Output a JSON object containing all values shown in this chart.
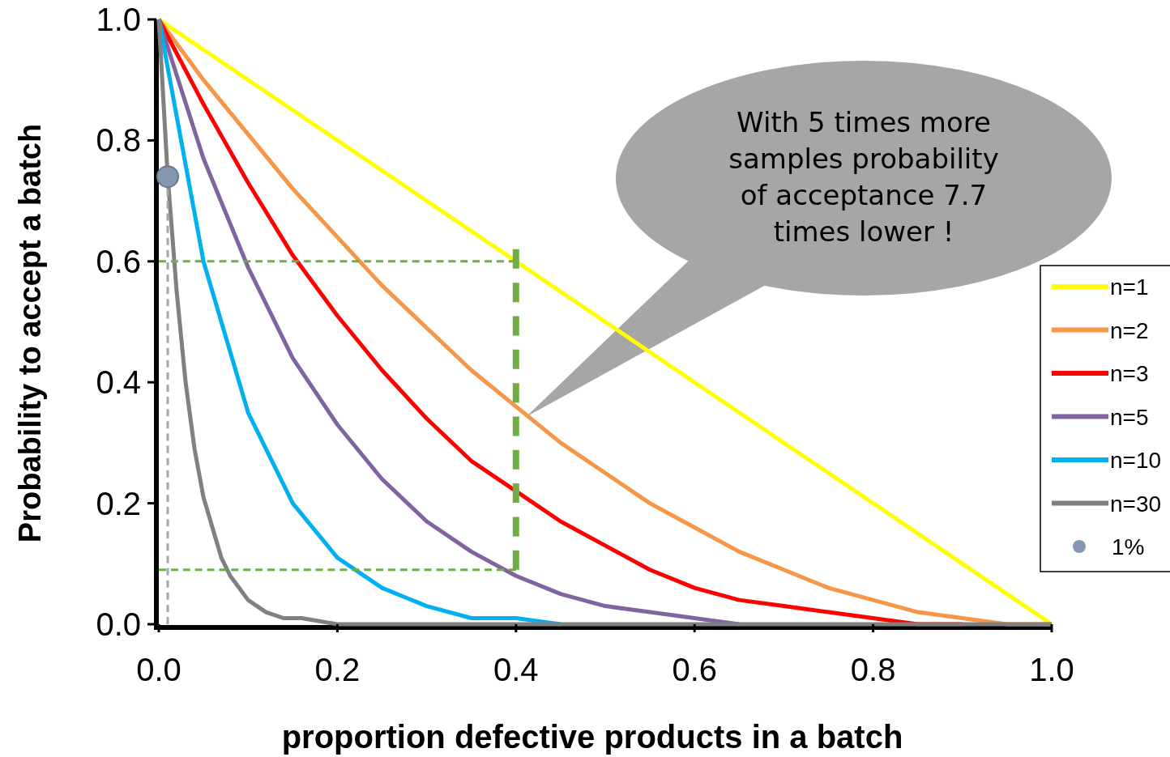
{
  "chart_data": {
    "type": "line",
    "xlabel": "proportion defective products in a batch",
    "ylabel": "Probability to accept a batch",
    "xlim": [
      0,
      1
    ],
    "ylim": [
      0,
      1
    ],
    "xticks": [
      {
        "value": 0,
        "label": "0.0"
      },
      {
        "value": 0.2,
        "label": "0.2"
      },
      {
        "value": 0.4,
        "label": "0.4"
      },
      {
        "value": 0.6,
        "label": "0.6"
      },
      {
        "value": 0.8,
        "label": "0.8"
      },
      {
        "value": 1,
        "label": "1.0"
      }
    ],
    "yticks": [
      {
        "value": 0,
        "label": "0.0"
      },
      {
        "value": 0.2,
        "label": "0.2"
      },
      {
        "value": 0.4,
        "label": "0.4"
      },
      {
        "value": 0.6,
        "label": "0.6"
      },
      {
        "value": 0.8,
        "label": "0.8"
      },
      {
        "value": 1,
        "label": "1.0"
      }
    ],
    "grid": false,
    "legend": "right",
    "marker": "none",
    "line_style": "solid",
    "annotations": [
      "With 5 times more\nsamples probability\nof acceptance 7.7\ntimes lower !"
    ],
    "series": [
      {
        "name": "n=1",
        "color": "#ffff00",
        "x": [
          0,
          1
        ],
        "values": [
          1,
          0
        ]
      },
      {
        "name": "n=2",
        "color": "#f79646",
        "x": [
          0,
          0.05,
          0.1,
          0.15,
          0.2,
          0.25,
          0.3,
          0.35,
          0.4,
          0.45,
          0.5,
          0.55,
          0.6,
          0.65,
          0.7,
          0.75,
          0.8,
          0.85,
          0.9,
          0.95,
          1
        ],
        "values": [
          1,
          0.9,
          0.81,
          0.72,
          0.64,
          0.56,
          0.49,
          0.42,
          0.36,
          0.3,
          0.25,
          0.2,
          0.16,
          0.12,
          0.09,
          0.06,
          0.04,
          0.02,
          0.01,
          0,
          0
        ]
      },
      {
        "name": "n=3",
        "color": "#ff0000",
        "x": [
          0,
          0.05,
          0.1,
          0.15,
          0.2,
          0.25,
          0.3,
          0.35,
          0.4,
          0.45,
          0.5,
          0.55,
          0.6,
          0.65,
          0.7,
          0.75,
          0.8,
          0.85,
          0.9
        ],
        "values": [
          1,
          0.86,
          0.73,
          0.61,
          0.51,
          0.42,
          0.34,
          0.27,
          0.22,
          0.17,
          0.13,
          0.09,
          0.06,
          0.04,
          0.03,
          0.02,
          0.01,
          0,
          0
        ]
      },
      {
        "name": "n=5",
        "color": "#8064a2",
        "x": [
          0,
          0.05,
          0.1,
          0.15,
          0.2,
          0.25,
          0.3,
          0.35,
          0.4,
          0.45,
          0.5,
          0.55,
          0.6,
          0.65
        ],
        "values": [
          1,
          0.77,
          0.59,
          0.44,
          0.33,
          0.24,
          0.17,
          0.12,
          0.08,
          0.05,
          0.03,
          0.02,
          0.01,
          0
        ]
      },
      {
        "name": "n=10",
        "color": "#00b0f0",
        "x": [
          0,
          0.05,
          0.1,
          0.15,
          0.2,
          0.25,
          0.3,
          0.35,
          0.4,
          0.45
        ],
        "values": [
          1,
          0.6,
          0.35,
          0.2,
          0.11,
          0.06,
          0.03,
          0.01,
          0.01,
          0
        ]
      },
      {
        "name": "n=30",
        "color": "#808080",
        "x": [
          0,
          0.01,
          0.02,
          0.03,
          0.04,
          0.05,
          0.06,
          0.07,
          0.08,
          0.1,
          0.12,
          0.14,
          0.16,
          0.2,
          0.3,
          0.4,
          0.5,
          0.6,
          0.7,
          0.8,
          0.9,
          1
        ],
        "values": [
          1,
          0.74,
          0.55,
          0.4,
          0.29,
          0.21,
          0.16,
          0.11,
          0.08,
          0.04,
          0.02,
          0.01,
          0.01,
          0,
          0,
          0,
          0,
          0,
          0,
          0,
          0,
          0
        ]
      },
      {
        "type": "line",
        "color": "#70ad47",
        "line_style": "dashed",
        "x": [
          0,
          0.4
        ],
        "values": [
          0.6,
          0.6
        ]
      },
      {
        "type": "line",
        "color": "#70ad47",
        "line_style": "dashed",
        "x": [
          0,
          0.4
        ],
        "values": [
          0.09,
          0.09
        ]
      },
      {
        "type": "line",
        "color": "#70ad47",
        "line_style": "dashed",
        "x": [
          0.4,
          0.4
        ],
        "values": [
          0.09,
          0.62
        ]
      },
      {
        "type": "line",
        "color": "#a6a6a6",
        "line_style": "dashed",
        "x": [
          0.01,
          0.01
        ],
        "values": [
          0,
          0.74
        ]
      },
      {
        "name": "1%",
        "type": "scatter",
        "marker": "circle",
        "color": "#8497b0",
        "x": [
          0.01
        ],
        "values": [
          0.74
        ]
      }
    ]
  }
}
